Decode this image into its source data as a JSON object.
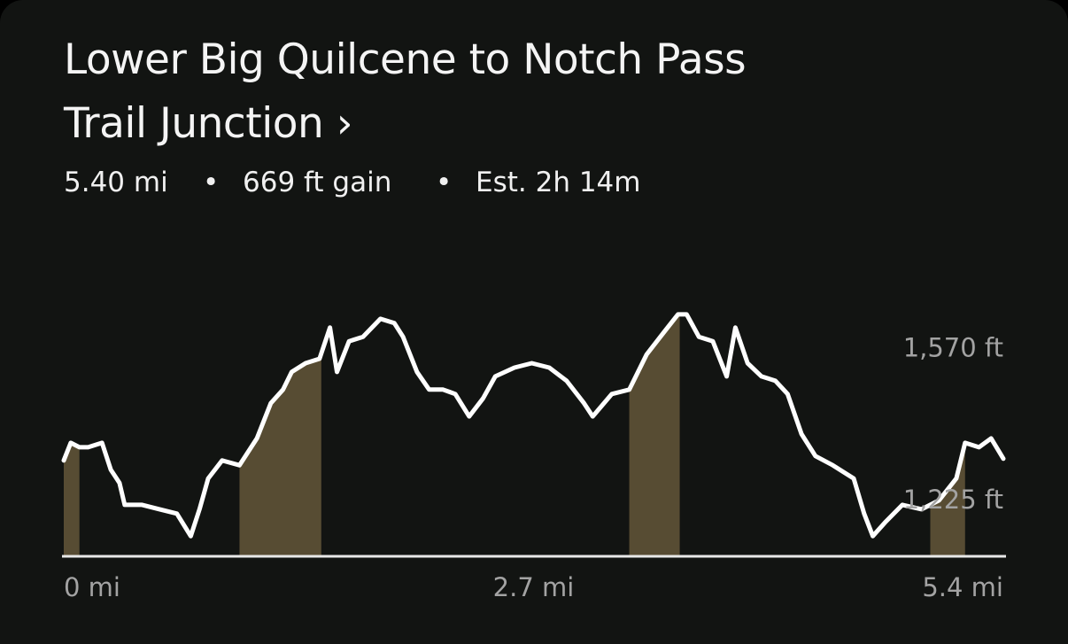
{
  "chart_data": {
    "type": "area",
    "title": "Lower Big Quilcene to Notch Pass Trail Junction ›",
    "stats": [
      "5.40 mi",
      "669 ft gain",
      "Est. 2h 14m"
    ],
    "x": [
      0,
      0.04,
      0.09,
      0.14,
      0.22,
      0.27,
      0.32,
      0.35,
      0.45,
      0.55,
      0.65,
      0.73,
      0.78,
      0.83,
      0.91,
      1.01,
      1.11,
      1.19,
      1.26,
      1.31,
      1.39,
      1.47,
      1.53,
      1.57,
      1.64,
      1.72,
      1.82,
      1.9,
      1.95,
      2.03,
      2.1,
      2.18,
      2.25,
      2.33,
      2.41,
      2.48,
      2.59,
      2.69,
      2.79,
      2.89,
      2.99,
      3.04,
      3.15,
      3.25,
      3.35,
      3.45,
      3.53,
      3.58,
      3.65,
      3.73,
      3.81,
      3.86,
      3.93,
      4.01,
      4.09,
      4.16,
      4.24,
      4.32,
      4.42,
      4.54,
      4.6,
      4.65,
      4.72,
      4.82,
      4.93,
      5.03,
      5.13,
      5.18,
      5.26,
      5.33,
      5.4
    ],
    "values": [
      1318,
      1358,
      1348,
      1348,
      1358,
      1297,
      1267,
      1217,
      1217,
      1207,
      1197,
      1146,
      1207,
      1277,
      1318,
      1307,
      1368,
      1448,
      1479,
      1519,
      1539,
      1549,
      1620,
      1519,
      1589,
      1599,
      1640,
      1630,
      1599,
      1519,
      1479,
      1479,
      1469,
      1418,
      1459,
      1509,
      1529,
      1539,
      1529,
      1499,
      1448,
      1418,
      1469,
      1479,
      1559,
      1610,
      1650,
      1650,
      1599,
      1589,
      1509,
      1620,
      1539,
      1509,
      1499,
      1469,
      1378,
      1328,
      1307,
      1277,
      1197,
      1146,
      1177,
      1217,
      1207,
      1227,
      1277,
      1358,
      1348,
      1368,
      1322
    ],
    "color": "#ffffff",
    "highlights": [
      [
        0,
        0.09
      ],
      [
        1.01,
        1.48
      ],
      [
        3.25,
        3.54
      ],
      [
        4.98,
        5.18
      ]
    ],
    "highlight_color": "#574c33",
    "xlim": [
      0,
      5.4
    ],
    "ylim": [
      1100,
      1680
    ],
    "xticks": [
      {
        "value": 0,
        "label": "0 mi"
      },
      {
        "value": 2.7,
        "label": "2.7 mi"
      },
      {
        "value": 5.4,
        "label": "5.4 mi"
      }
    ],
    "yticks": [
      {
        "value": 1225,
        "label": "1,225 ft"
      },
      {
        "value": 1570,
        "label": "1,570 ft"
      }
    ],
    "grid": false
  }
}
